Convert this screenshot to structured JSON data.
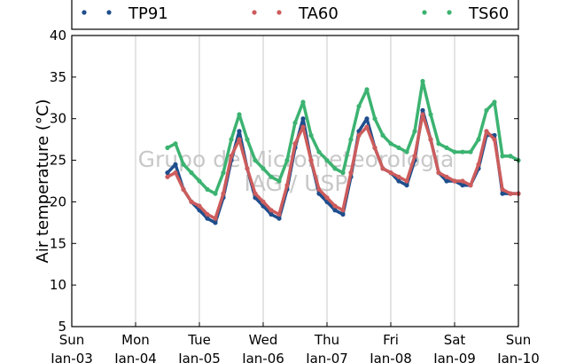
{
  "chart_data": {
    "type": "scatter",
    "title": "",
    "xlabel": "",
    "ylabel": "Air temperature (°C)",
    "ylim": [
      5,
      40
    ],
    "yticks": [
      5,
      10,
      15,
      20,
      25,
      30,
      35,
      40
    ],
    "xlim": [
      "2000-01-03",
      "2000-01-10"
    ],
    "xticks": [
      {
        "date": "2000-01-03",
        "label": [
          "Sun",
          "Jan-03"
        ]
      },
      {
        "date": "2000-01-04",
        "label": [
          "Mon",
          "Jan-04"
        ]
      },
      {
        "date": "2000-01-05",
        "label": [
          "Tue",
          "Jan-05"
        ]
      },
      {
        "date": "2000-01-06",
        "label": [
          "Wed",
          "Jan-06"
        ]
      },
      {
        "date": "2000-01-07",
        "label": [
          "Thu",
          "Jan-07"
        ]
      },
      {
        "date": "2000-01-08",
        "label": [
          "Fri",
          "Jan-08"
        ]
      },
      {
        "date": "2000-01-09",
        "label": [
          "Sat",
          "Jan-09"
        ]
      },
      {
        "date": "2000-01-10",
        "label": [
          "Sun",
          "Jan-10"
        ]
      }
    ],
    "grid": "vertical",
    "legend_placement": "top",
    "watermark": [
      "Grupo de Micrometeorologia",
      "IAG / USP"
    ],
    "series": [
      {
        "name": "TP91",
        "color": "#1f4e8c",
        "points": [
          [
            "2000-01-04 12:00",
            23.5
          ],
          [
            "2000-01-04 15:00",
            24.5
          ],
          [
            "2000-01-04 18:00",
            21.5
          ],
          [
            "2000-01-04 21:00",
            20.0
          ],
          [
            "2000-01-05 00:00",
            19.0
          ],
          [
            "2000-01-05 03:00",
            18.0
          ],
          [
            "2000-01-05 06:00",
            17.5
          ],
          [
            "2000-01-05 09:00",
            20.5
          ],
          [
            "2000-01-05 12:00",
            25.0
          ],
          [
            "2000-01-05 15:00",
            28.5
          ],
          [
            "2000-01-05 18:00",
            24.0
          ],
          [
            "2000-01-05 21:00",
            20.5
          ],
          [
            "2000-01-06 00:00",
            19.5
          ],
          [
            "2000-01-06 03:00",
            18.5
          ],
          [
            "2000-01-06 06:00",
            18.0
          ],
          [
            "2000-01-06 09:00",
            21.5
          ],
          [
            "2000-01-06 12:00",
            26.5
          ],
          [
            "2000-01-06 15:00",
            30.0
          ],
          [
            "2000-01-06 18:00",
            25.0
          ],
          [
            "2000-01-06 21:00",
            21.0
          ],
          [
            "2000-01-07 00:00",
            20.0
          ],
          [
            "2000-01-07 03:00",
            19.0
          ],
          [
            "2000-01-07 06:00",
            18.5
          ],
          [
            "2000-01-07 09:00",
            23.0
          ],
          [
            "2000-01-07 12:00",
            28.5
          ],
          [
            "2000-01-07 15:00",
            30.0
          ],
          [
            "2000-01-07 18:00",
            26.5
          ],
          [
            "2000-01-07 21:00",
            24.0
          ],
          [
            "2000-01-08 00:00",
            23.5
          ],
          [
            "2000-01-08 03:00",
            22.5
          ],
          [
            "2000-01-08 06:00",
            22.0
          ],
          [
            "2000-01-08 09:00",
            25.0
          ],
          [
            "2000-01-08 12:00",
            31.0
          ],
          [
            "2000-01-08 15:00",
            27.5
          ],
          [
            "2000-01-08 18:00",
            23.5
          ],
          [
            "2000-01-08 21:00",
            22.5
          ],
          [
            "2000-01-09 00:00",
            22.5
          ],
          [
            "2000-01-09 03:00",
            22.0
          ],
          [
            "2000-01-09 06:00",
            22.0
          ],
          [
            "2000-01-09 09:00",
            24.0
          ],
          [
            "2000-01-09 12:00",
            28.0
          ],
          [
            "2000-01-09 15:00",
            28.0
          ],
          [
            "2000-01-09 18:00",
            21.0
          ],
          [
            "2000-01-09 21:00",
            21.0
          ],
          [
            "2000-01-10 00:00",
            21.0
          ]
        ]
      },
      {
        "name": "TA60",
        "color": "#cd5c5c",
        "points": [
          [
            "2000-01-04 12:00",
            23.0
          ],
          [
            "2000-01-04 15:00",
            23.5
          ],
          [
            "2000-01-04 18:00",
            21.5
          ],
          [
            "2000-01-04 21:00",
            20.0
          ],
          [
            "2000-01-05 00:00",
            19.5
          ],
          [
            "2000-01-05 03:00",
            18.5
          ],
          [
            "2000-01-05 06:00",
            18.0
          ],
          [
            "2000-01-05 09:00",
            21.0
          ],
          [
            "2000-01-05 12:00",
            25.5
          ],
          [
            "2000-01-05 15:00",
            27.5
          ],
          [
            "2000-01-05 18:00",
            24.0
          ],
          [
            "2000-01-05 21:00",
            21.0
          ],
          [
            "2000-01-06 00:00",
            20.0
          ],
          [
            "2000-01-06 03:00",
            19.0
          ],
          [
            "2000-01-06 06:00",
            18.5
          ],
          [
            "2000-01-06 09:00",
            22.0
          ],
          [
            "2000-01-06 12:00",
            27.0
          ],
          [
            "2000-01-06 15:00",
            29.0
          ],
          [
            "2000-01-06 18:00",
            25.0
          ],
          [
            "2000-01-06 21:00",
            21.5
          ],
          [
            "2000-01-07 00:00",
            20.5
          ],
          [
            "2000-01-07 03:00",
            19.5
          ],
          [
            "2000-01-07 06:00",
            19.0
          ],
          [
            "2000-01-07 09:00",
            23.5
          ],
          [
            "2000-01-07 12:00",
            28.0
          ],
          [
            "2000-01-07 15:00",
            29.0
          ],
          [
            "2000-01-07 18:00",
            26.5
          ],
          [
            "2000-01-07 21:00",
            24.0
          ],
          [
            "2000-01-08 00:00",
            23.5
          ],
          [
            "2000-01-08 03:00",
            23.0
          ],
          [
            "2000-01-08 06:00",
            22.5
          ],
          [
            "2000-01-08 09:00",
            25.5
          ],
          [
            "2000-01-08 12:00",
            30.5
          ],
          [
            "2000-01-08 15:00",
            27.5
          ],
          [
            "2000-01-08 18:00",
            23.5
          ],
          [
            "2000-01-08 21:00",
            23.0
          ],
          [
            "2000-01-09 00:00",
            22.5
          ],
          [
            "2000-01-09 03:00",
            22.5
          ],
          [
            "2000-01-09 06:00",
            22.0
          ],
          [
            "2000-01-09 09:00",
            24.5
          ],
          [
            "2000-01-09 12:00",
            28.5
          ],
          [
            "2000-01-09 15:00",
            27.5
          ],
          [
            "2000-01-09 18:00",
            21.5
          ],
          [
            "2000-01-09 21:00",
            21.0
          ],
          [
            "2000-01-10 00:00",
            21.0
          ]
        ]
      },
      {
        "name": "TS60",
        "color": "#3cb371",
        "points": [
          [
            "2000-01-04 12:00",
            26.5
          ],
          [
            "2000-01-04 15:00",
            27.0
          ],
          [
            "2000-01-04 18:00",
            24.5
          ],
          [
            "2000-01-04 21:00",
            23.5
          ],
          [
            "2000-01-05 00:00",
            22.5
          ],
          [
            "2000-01-05 03:00",
            21.5
          ],
          [
            "2000-01-05 06:00",
            21.0
          ],
          [
            "2000-01-05 09:00",
            23.5
          ],
          [
            "2000-01-05 12:00",
            27.5
          ],
          [
            "2000-01-05 15:00",
            30.5
          ],
          [
            "2000-01-05 18:00",
            27.5
          ],
          [
            "2000-01-05 21:00",
            25.0
          ],
          [
            "2000-01-06 00:00",
            24.0
          ],
          [
            "2000-01-06 03:00",
            23.0
          ],
          [
            "2000-01-06 06:00",
            22.5
          ],
          [
            "2000-01-06 09:00",
            25.0
          ],
          [
            "2000-01-06 12:00",
            29.5
          ],
          [
            "2000-01-06 15:00",
            32.0
          ],
          [
            "2000-01-06 18:00",
            28.0
          ],
          [
            "2000-01-06 21:00",
            26.0
          ],
          [
            "2000-01-07 00:00",
            25.0
          ],
          [
            "2000-01-07 03:00",
            24.0
          ],
          [
            "2000-01-07 06:00",
            23.5
          ],
          [
            "2000-01-07 09:00",
            27.5
          ],
          [
            "2000-01-07 12:00",
            31.5
          ],
          [
            "2000-01-07 15:00",
            33.5
          ],
          [
            "2000-01-07 18:00",
            30.0
          ],
          [
            "2000-01-07 21:00",
            28.0
          ],
          [
            "2000-01-08 00:00",
            27.0
          ],
          [
            "2000-01-08 03:00",
            26.5
          ],
          [
            "2000-01-08 06:00",
            26.0
          ],
          [
            "2000-01-08 09:00",
            28.5
          ],
          [
            "2000-01-08 12:00",
            34.5
          ],
          [
            "2000-01-08 15:00",
            30.5
          ],
          [
            "2000-01-08 18:00",
            27.0
          ],
          [
            "2000-01-08 21:00",
            26.5
          ],
          [
            "2000-01-09 00:00",
            26.0
          ],
          [
            "2000-01-09 03:00",
            26.0
          ],
          [
            "2000-01-09 06:00",
            26.0
          ],
          [
            "2000-01-09 09:00",
            27.5
          ],
          [
            "2000-01-09 12:00",
            31.0
          ],
          [
            "2000-01-09 15:00",
            32.0
          ],
          [
            "2000-01-09 18:00",
            25.5
          ],
          [
            "2000-01-09 21:00",
            25.5
          ],
          [
            "2000-01-10 00:00",
            25.0
          ]
        ]
      }
    ]
  }
}
